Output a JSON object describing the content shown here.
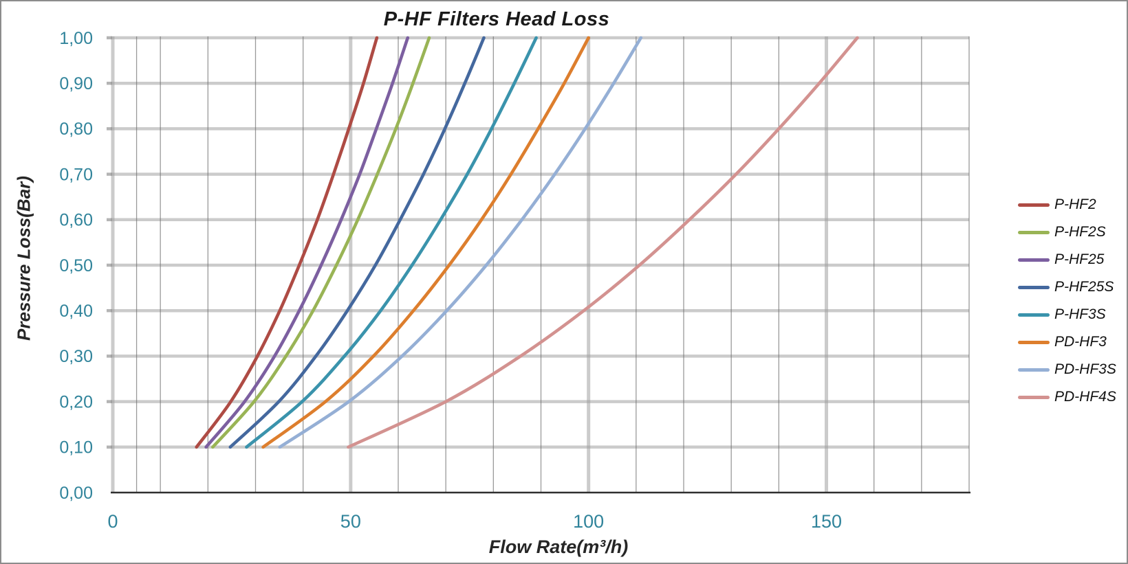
{
  "window": {
    "background": "#FFFFFF",
    "border_color": "#8C8C8C"
  },
  "chart_data": {
    "type": "line",
    "title": "P-HF Filters Head Loss",
    "xlabel": "Flow Rate(m³/h)",
    "ylabel": "Pressure Loss(Bar)",
    "xlim": [
      0,
      180
    ],
    "ylim": [
      0.0,
      1.0
    ],
    "grid": true,
    "legend_position": "right",
    "axis_tick_color": "#31849B",
    "x_major_ticks": [
      0,
      50,
      100,
      150
    ],
    "x_tick_labels": [
      "0",
      "50",
      "100",
      "150"
    ],
    "x_minor_gridlines": [
      5,
      10,
      20,
      30,
      40,
      60,
      70,
      80,
      90,
      110,
      120,
      130,
      140,
      160,
      170,
      180
    ],
    "y_ticks": [
      0.0,
      0.1,
      0.2,
      0.3,
      0.4,
      0.5,
      0.6,
      0.7,
      0.8,
      0.9,
      1.0
    ],
    "y_tick_labels": [
      "0,00",
      "0,10",
      "0,20",
      "0,30",
      "0,40",
      "0,50",
      "0,60",
      "0,70",
      "0,80",
      "0,90",
      "1,00"
    ],
    "pressure_bar": [
      0.1,
      0.2,
      0.3,
      0.4,
      0.5,
      0.6,
      0.7,
      0.8,
      0.9,
      1.0
    ],
    "series": [
      {
        "name": "P-HF2",
        "color": "#AE4B44",
        "flow_m3h": [
          17.6,
          24.8,
          30.4,
          35.1,
          39.2,
          43.0,
          46.4,
          49.6,
          52.7,
          55.5
        ]
      },
      {
        "name": "P-HF2S",
        "color": "#99B455",
        "flow_m3h": [
          21.0,
          29.7,
          36.4,
          42.1,
          47.0,
          51.5,
          55.6,
          59.5,
          63.1,
          66.5
        ]
      },
      {
        "name": "P-HF25",
        "color": "#7C5FA0",
        "flow_m3h": [
          19.6,
          27.7,
          34.0,
          39.2,
          43.8,
          48.0,
          51.9,
          55.4,
          58.8,
          62.0
        ]
      },
      {
        "name": "P-HF25S",
        "color": "#44689E",
        "flow_m3h": [
          24.7,
          34.9,
          42.7,
          49.3,
          55.2,
          60.4,
          65.3,
          69.8,
          74.0,
          78.0
        ]
      },
      {
        "name": "P-HF3S",
        "color": "#3A93AC",
        "flow_m3h": [
          28.1,
          39.8,
          48.7,
          56.3,
          62.9,
          68.9,
          74.5,
          79.6,
          84.4,
          89.0
        ]
      },
      {
        "name": "PD-HF3",
        "color": "#DD7E2D",
        "flow_m3h": [
          31.6,
          44.7,
          54.8,
          63.2,
          70.7,
          77.5,
          83.7,
          89.4,
          94.9,
          100.0
        ]
      },
      {
        "name": "PD-HF3S",
        "color": "#95AFD5",
        "flow_m3h": [
          35.1,
          49.6,
          60.8,
          70.2,
          78.5,
          86.0,
          92.9,
          99.3,
          105.3,
          111.0
        ]
      },
      {
        "name": "PD-HF4S",
        "color": "#D39290",
        "flow_m3h": [
          49.5,
          70.0,
          85.7,
          99.0,
          110.7,
          121.2,
          131.0,
          140.0,
          148.5,
          156.5
        ]
      }
    ]
  }
}
